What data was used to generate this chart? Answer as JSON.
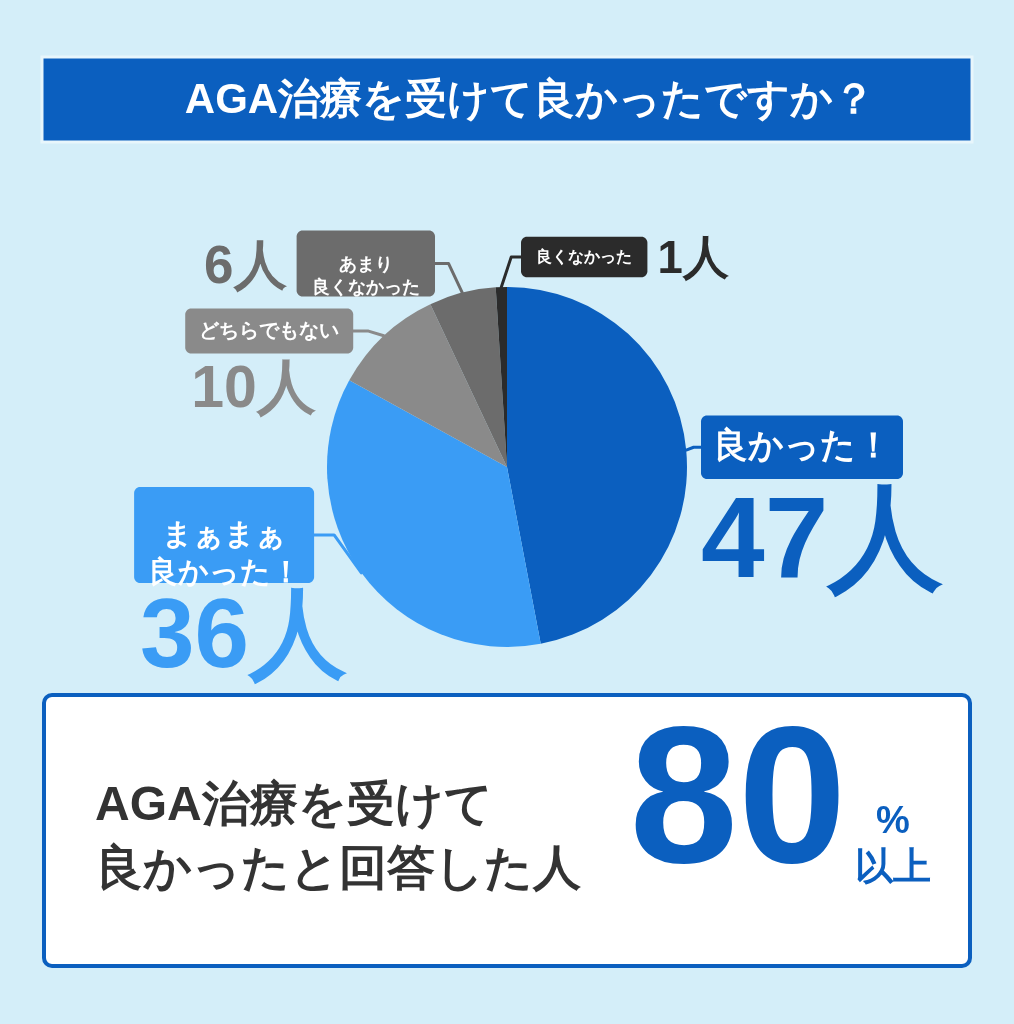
{
  "chart_data": {
    "type": "pie",
    "title": "AGA治療を受けて良かったですか？",
    "categories": [
      "良かった！",
      "まぁまぁ良かった！",
      "どちらでもない",
      "あまり良くなかった",
      "良くなかった"
    ],
    "values": [
      47,
      36,
      10,
      6,
      1
    ],
    "value_labels": [
      "47人",
      "36人",
      "10人",
      "6人",
      "1人"
    ],
    "colors": [
      "#0b5fbf",
      "#3a9cf5",
      "#8a8a8a",
      "#6c6c6c",
      "#2b2b2b"
    ],
    "annotations": [
      "AGA治療を受けて良かったと回答した人",
      "80",
      "%以上"
    ]
  }
}
